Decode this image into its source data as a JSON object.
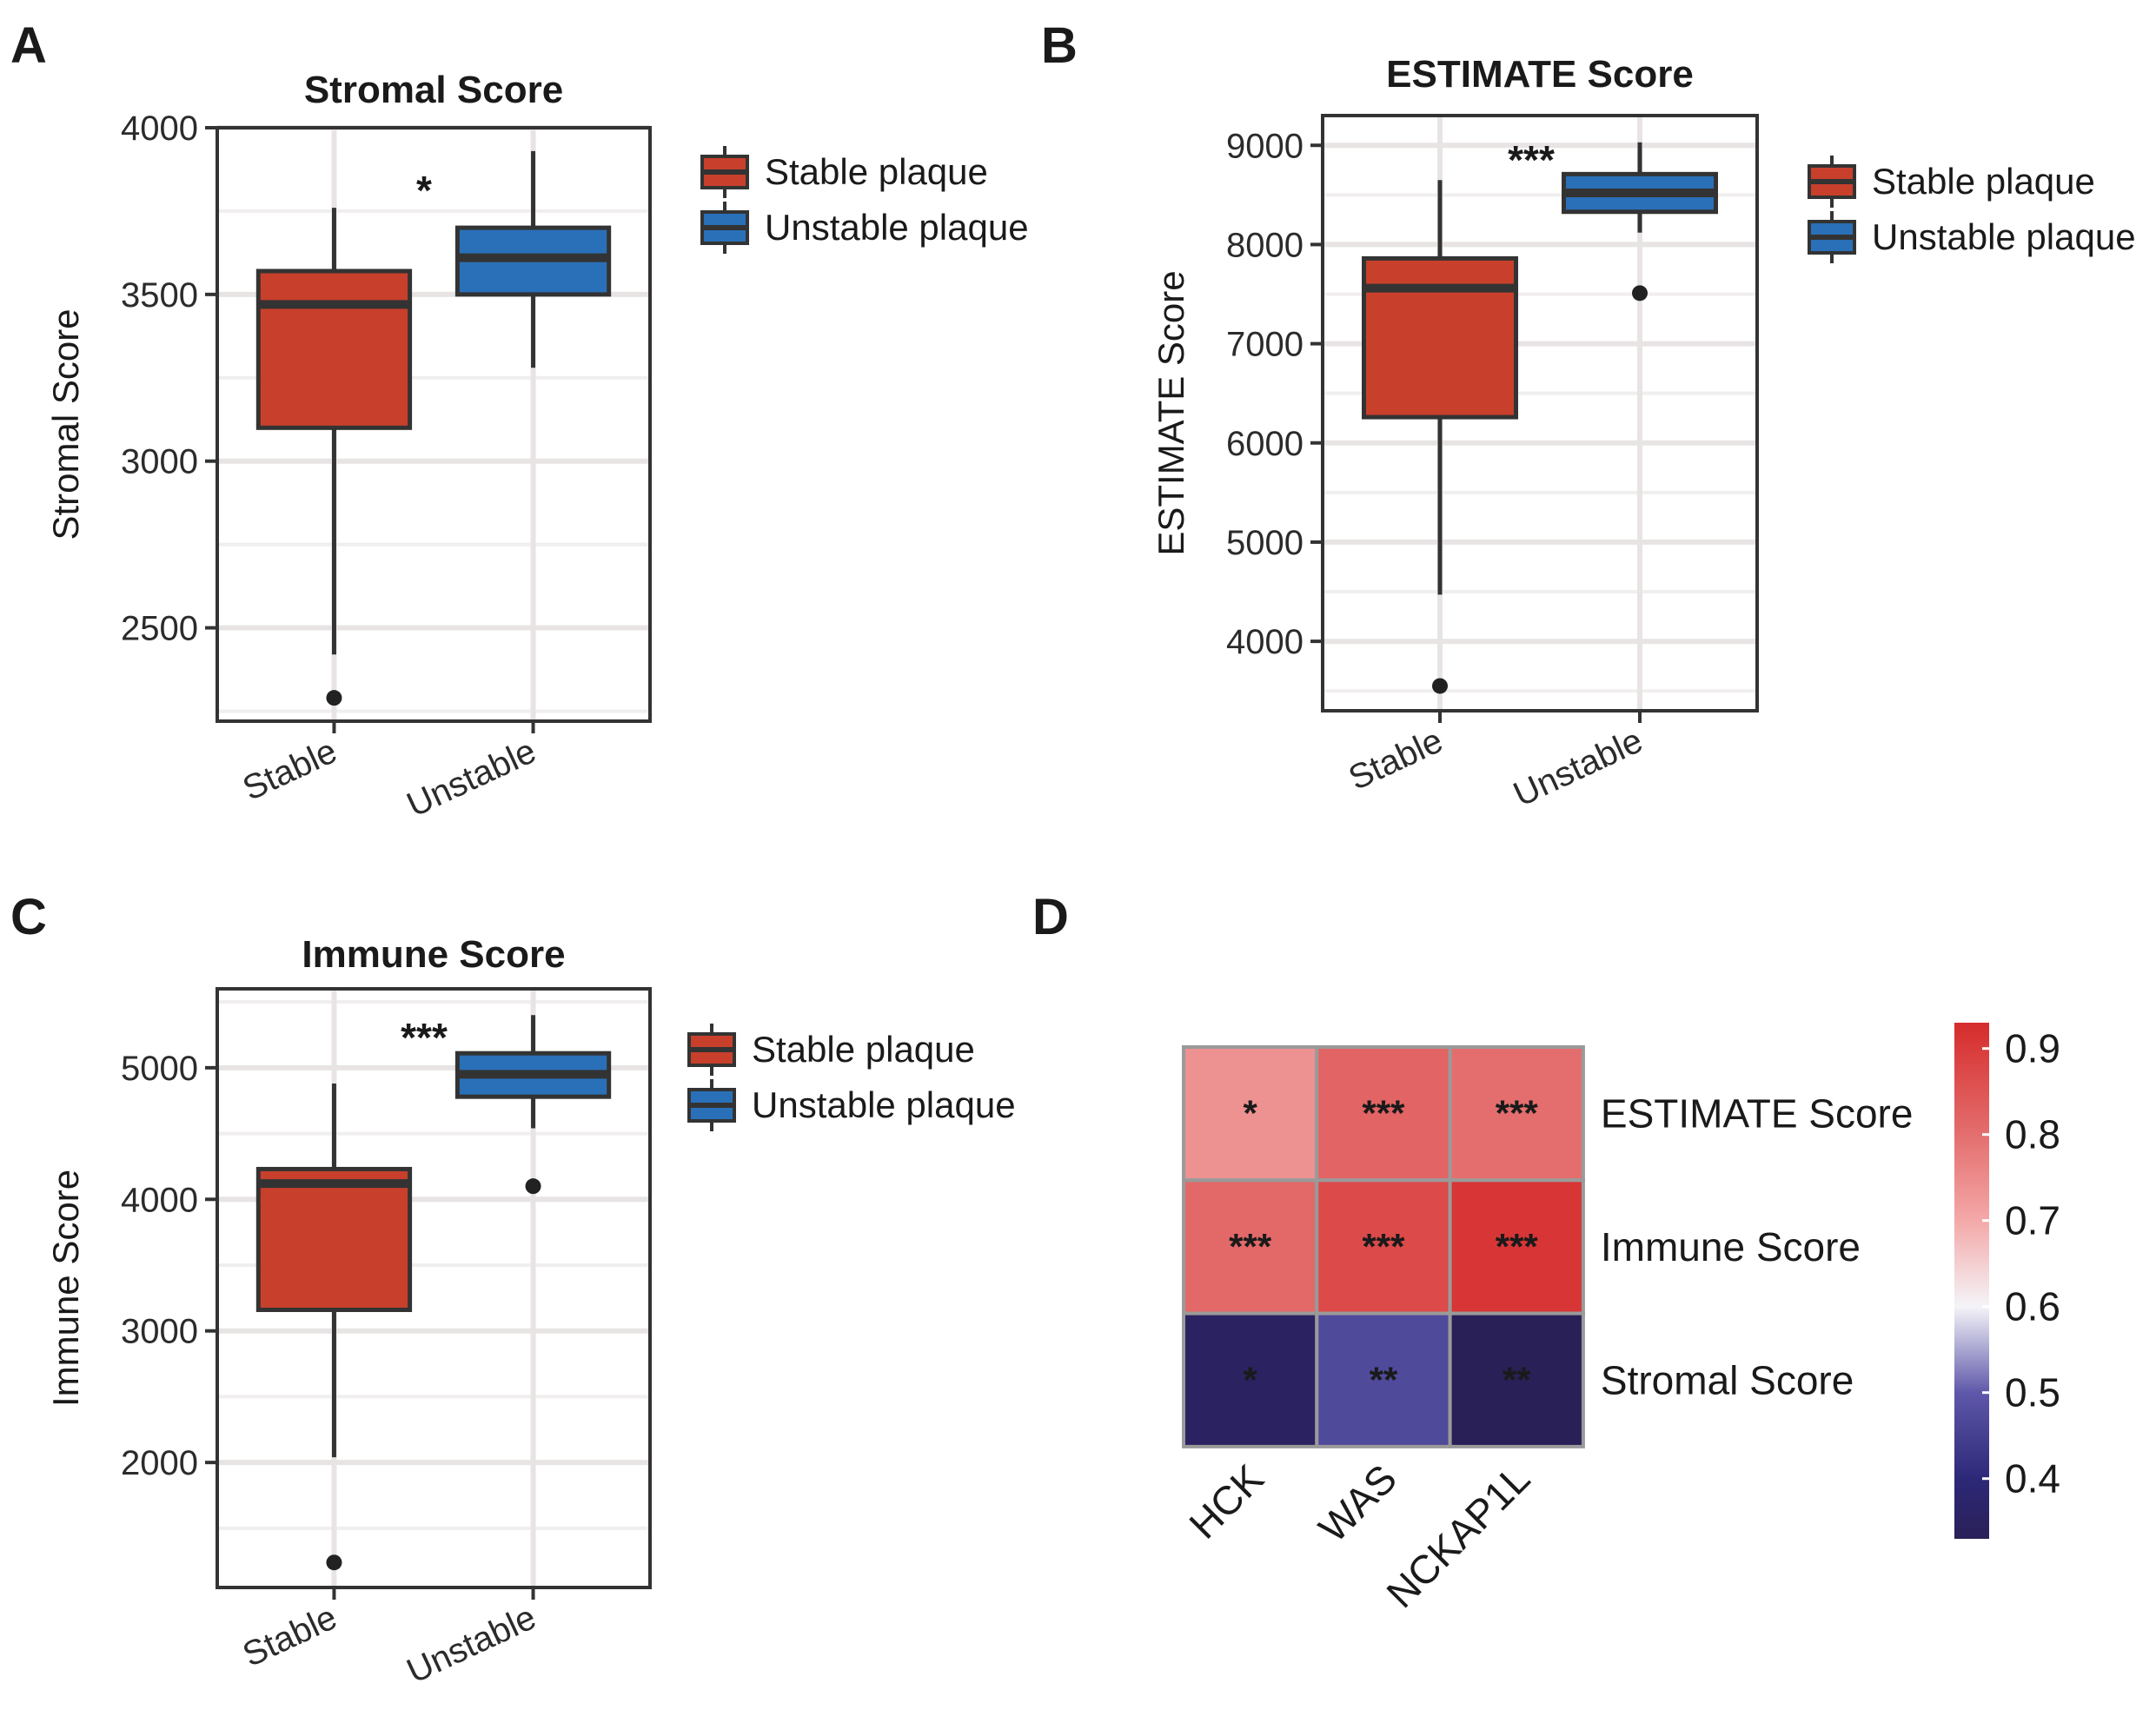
{
  "chart_data": [
    {
      "panel": "A",
      "type": "box",
      "title": "Stromal Score",
      "ylabel": "Stromal Score",
      "xlabel": "",
      "categories": [
        "Stable",
        "Unstable"
      ],
      "ylim": [
        2220,
        4000
      ],
      "yticks": [
        2500,
        3000,
        3500,
        4000
      ],
      "boxes": [
        {
          "q1": 3100,
          "median": 3470,
          "q3": 3570,
          "whisker_low": 2420,
          "whisker_high": 3760,
          "outliers": [
            2290
          ],
          "color": "#c8402c"
        },
        {
          "q1": 3500,
          "median": 3610,
          "q3": 3700,
          "whisker_low": 3280,
          "whisker_high": 3930,
          "outliers": [],
          "color": "#2a70b8"
        }
      ],
      "significance": "*",
      "legend": [
        "Stable plaque",
        "Unstable plaque"
      ]
    },
    {
      "panel": "B",
      "type": "box",
      "title": "ESTIMATE Score",
      "ylabel": "ESTIMATE Score",
      "xlabel": "",
      "categories": [
        "Stable",
        "Unstable"
      ],
      "ylim": [
        3300,
        9300
      ],
      "yticks": [
        4000,
        5000,
        6000,
        7000,
        8000,
        9000
      ],
      "boxes": [
        {
          "q1": 6260,
          "median": 7560,
          "q3": 7860,
          "whisker_low": 4470,
          "whisker_high": 8650,
          "outliers": [
            3550
          ],
          "color": "#c8402c"
        },
        {
          "q1": 8330,
          "median": 8520,
          "q3": 8710,
          "whisker_low": 8120,
          "whisker_high": 9030,
          "outliers": [
            7510
          ],
          "color": "#2a70b8"
        }
      ],
      "significance": "***",
      "legend": [
        "Stable plaque",
        "Unstable plaque"
      ]
    },
    {
      "panel": "C",
      "type": "box",
      "title": "Immune Score",
      "ylabel": "Immune Score",
      "xlabel": "",
      "categories": [
        "Stable",
        "Unstable"
      ],
      "ylim": [
        1050,
        5600
      ],
      "yticks": [
        2000,
        3000,
        4000,
        5000
      ],
      "boxes": [
        {
          "q1": 3160,
          "median": 4120,
          "q3": 4230,
          "whisker_low": 2040,
          "whisker_high": 4880,
          "outliers": [
            1240
          ],
          "color": "#c8402c"
        },
        {
          "q1": 4780,
          "median": 4950,
          "q3": 5110,
          "whisker_low": 4540,
          "whisker_high": 5400,
          "outliers": [
            4100
          ],
          "color": "#2a70b8"
        }
      ],
      "significance": "***",
      "legend": [
        "Stable plaque",
        "Unstable plaque"
      ]
    },
    {
      "panel": "D",
      "type": "heatmap",
      "columns": [
        "HCK",
        "WAS",
        "NCKAP1L"
      ],
      "rows": [
        "ESTIMATE Score",
        "Immune Score",
        "Stromal Score"
      ],
      "values": [
        [
          0.74,
          0.82,
          0.8
        ],
        [
          0.81,
          0.87,
          0.91
        ],
        [
          0.35,
          0.47,
          0.33
        ]
      ],
      "significance": [
        [
          "*",
          "***",
          "***"
        ],
        [
          "***",
          "***",
          "***"
        ],
        [
          "*",
          "**",
          "**"
        ]
      ],
      "colorbar": {
        "min": 0.33,
        "max": 0.93,
        "ticks": [
          0.4,
          0.5,
          0.6,
          0.7,
          0.8,
          0.9
        ]
      }
    }
  ]
}
